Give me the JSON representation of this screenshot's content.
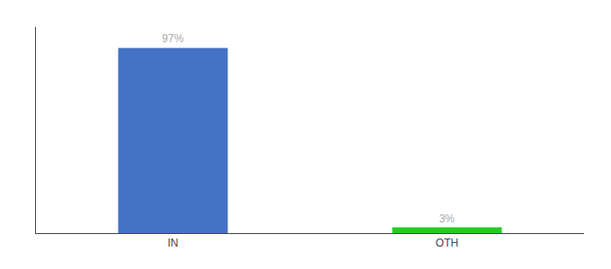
{
  "chart_data": {
    "type": "bar",
    "categories": [
      "IN",
      "OTH"
    ],
    "values": [
      97,
      3
    ],
    "value_labels": [
      "97%",
      "3%"
    ],
    "colors": [
      "#4472c4",
      "#22cc22"
    ],
    "ylim": [
      0,
      108
    ],
    "yticks": [],
    "tick_labels": "x",
    "data_labels": true,
    "grid": false
  }
}
